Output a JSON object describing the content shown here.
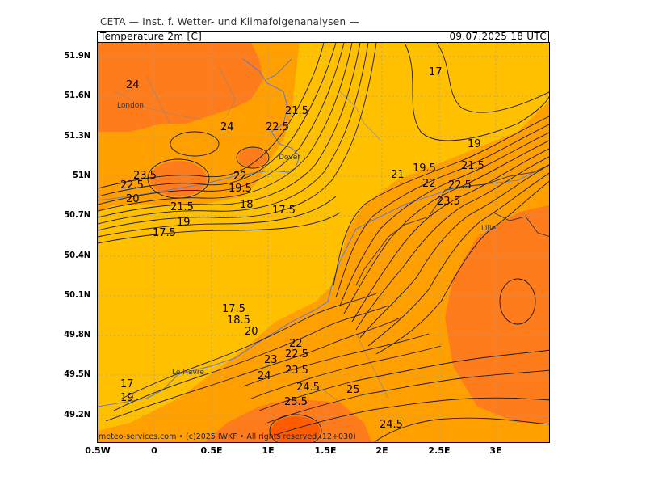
{
  "header": {
    "title": "CETA — Inst. f. Wetter- und Klimafolgenanalysen —",
    "map_title": "Temperature 2m [C]",
    "valid_time": "09.07.2025 18 UTC"
  },
  "axes": {
    "lat_ticks": [
      "51.9N",
      "51.6N",
      "51.3N",
      "51N",
      "50.7N",
      "50.4N",
      "50.1N",
      "49.8N",
      "49.5N",
      "49.2N"
    ],
    "lon_ticks": [
      "0.5W",
      "0",
      "0.5E",
      "1E",
      "1.5E",
      "2E",
      "2.5E",
      "3E"
    ]
  },
  "cities": {
    "london": "London",
    "dover": "Dover",
    "lille": "Lille",
    "le_havre": "Le Havre"
  },
  "contour_labels": {
    "c01": "24",
    "c02": "21.5",
    "c03": "24",
    "c04": "22.5",
    "c05": "17",
    "c06": "23.5",
    "c07": "22.5",
    "c08": "20",
    "c09": "21.5",
    "c10": "19",
    "c11": "17.5",
    "c12": "22",
    "c13": "19.5",
    "c14": "18",
    "c15": "17.5",
    "c16": "21",
    "c17": "19.5",
    "c18": "22",
    "c19": "19",
    "c20": "21.5",
    "c21": "22.5",
    "c22": "23.5",
    "c23": "17.5",
    "c24": "18.5",
    "c25": "20",
    "c26": "22",
    "c27": "22.5",
    "c28": "23",
    "c29": "23.5",
    "c30": "24",
    "c31": "24.5",
    "c32": "25",
    "c33": "25.5",
    "c34": "24.5",
    "c35": "17",
    "c36": "19"
  },
  "copyright": "meteo-services.com • (c)2025 IWKF • All rights reserved (12+030)",
  "colors": {
    "yellow": "#ffc000",
    "orange": "#ffa000",
    "dark_orange": "#ff7c1c",
    "red_orange": "#ff5c00",
    "coast": "#6a7cc8"
  }
}
